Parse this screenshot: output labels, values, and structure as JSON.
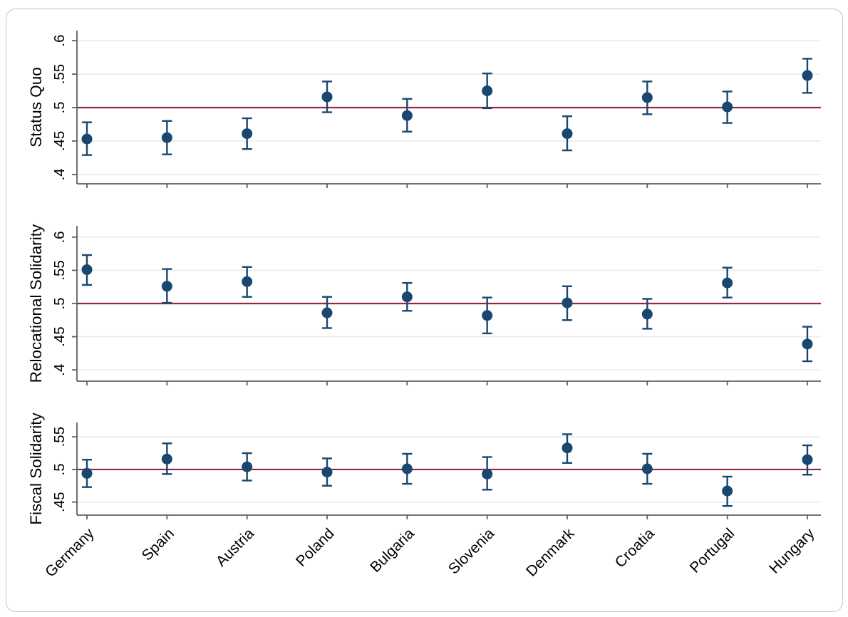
{
  "figure": {
    "colors": {
      "marker": "#1a476f",
      "reference_line": "#942743",
      "gridline": "#e4ecf3",
      "axis": "#5f5f5f",
      "text": "#000000",
      "frame_border": "#c4c4c4",
      "background": "#ffffff"
    }
  },
  "chart_data": {
    "type": "scatter",
    "subtype": "coefficient-plot-with-95ci",
    "grid": true,
    "legend": "none",
    "reference_line_value": 0.5,
    "categories": [
      "Germany",
      "Spain",
      "Austria",
      "Poland",
      "Bulgaria",
      "Slovenia",
      "Denmark",
      "Croatia",
      "Portugal",
      "Hungary"
    ],
    "panels": [
      {
        "ylabel": "Status Quo",
        "ytick_labels": [
          ".4",
          ".45",
          ".5",
          ".55",
          ".6"
        ],
        "ytick_values": [
          0.4,
          0.45,
          0.5,
          0.55,
          0.6
        ],
        "ylim": [
          0.386,
          0.615
        ],
        "points": [
          {
            "country": "Germany",
            "value": 0.453,
            "ci_low": 0.429,
            "ci_high": 0.478
          },
          {
            "country": "Spain",
            "value": 0.455,
            "ci_low": 0.43,
            "ci_high": 0.48
          },
          {
            "country": "Austria",
            "value": 0.461,
            "ci_low": 0.438,
            "ci_high": 0.484
          },
          {
            "country": "Poland",
            "value": 0.516,
            "ci_low": 0.493,
            "ci_high": 0.539
          },
          {
            "country": "Bulgaria",
            "value": 0.488,
            "ci_low": 0.464,
            "ci_high": 0.513
          },
          {
            "country": "Slovenia",
            "value": 0.525,
            "ci_low": 0.499,
            "ci_high": 0.551
          },
          {
            "country": "Denmark",
            "value": 0.461,
            "ci_low": 0.436,
            "ci_high": 0.487
          },
          {
            "country": "Croatia",
            "value": 0.515,
            "ci_low": 0.49,
            "ci_high": 0.539
          },
          {
            "country": "Portugal",
            "value": 0.501,
            "ci_low": 0.477,
            "ci_high": 0.524
          },
          {
            "country": "Hungary",
            "value": 0.548,
            "ci_low": 0.522,
            "ci_high": 0.573
          }
        ]
      },
      {
        "ylabel": "Relocational Solidarity",
        "ytick_labels": [
          ".4",
          ".45",
          ".5",
          ".55",
          ".6"
        ],
        "ytick_values": [
          0.4,
          0.45,
          0.5,
          0.55,
          0.6
        ],
        "ylim": [
          0.383,
          0.617
        ],
        "points": [
          {
            "country": "Germany",
            "value": 0.551,
            "ci_low": 0.528,
            "ci_high": 0.573
          },
          {
            "country": "Spain",
            "value": 0.526,
            "ci_low": 0.501,
            "ci_high": 0.552
          },
          {
            "country": "Austria",
            "value": 0.533,
            "ci_low": 0.51,
            "ci_high": 0.555
          },
          {
            "country": "Poland",
            "value": 0.486,
            "ci_low": 0.463,
            "ci_high": 0.51
          },
          {
            "country": "Bulgaria",
            "value": 0.51,
            "ci_low": 0.489,
            "ci_high": 0.531
          },
          {
            "country": "Slovenia",
            "value": 0.482,
            "ci_low": 0.455,
            "ci_high": 0.509
          },
          {
            "country": "Denmark",
            "value": 0.501,
            "ci_low": 0.475,
            "ci_high": 0.526
          },
          {
            "country": "Croatia",
            "value": 0.484,
            "ci_low": 0.462,
            "ci_high": 0.507
          },
          {
            "country": "Portugal",
            "value": 0.531,
            "ci_low": 0.509,
            "ci_high": 0.554
          },
          {
            "country": "Hungary",
            "value": 0.439,
            "ci_low": 0.413,
            "ci_high": 0.465
          }
        ]
      },
      {
        "ylabel": "Fiscal Solidarity",
        "ytick_labels": [
          ".45",
          ".5",
          ".55"
        ],
        "ytick_values": [
          0.45,
          0.5,
          0.55
        ],
        "ylim": [
          0.43,
          0.572
        ],
        "points": [
          {
            "country": "Germany",
            "value": 0.494,
            "ci_low": 0.473,
            "ci_high": 0.515
          },
          {
            "country": "Spain",
            "value": 0.516,
            "ci_low": 0.493,
            "ci_high": 0.54
          },
          {
            "country": "Austria",
            "value": 0.504,
            "ci_low": 0.483,
            "ci_high": 0.525
          },
          {
            "country": "Poland",
            "value": 0.496,
            "ci_low": 0.475,
            "ci_high": 0.517
          },
          {
            "country": "Bulgaria",
            "value": 0.501,
            "ci_low": 0.478,
            "ci_high": 0.524
          },
          {
            "country": "Slovenia",
            "value": 0.493,
            "ci_low": 0.469,
            "ci_high": 0.519
          },
          {
            "country": "Denmark",
            "value": 0.533,
            "ci_low": 0.51,
            "ci_high": 0.554
          },
          {
            "country": "Croatia",
            "value": 0.501,
            "ci_low": 0.478,
            "ci_high": 0.524
          },
          {
            "country": "Portugal",
            "value": 0.467,
            "ci_low": 0.444,
            "ci_high": 0.489
          },
          {
            "country": "Hungary",
            "value": 0.515,
            "ci_low": 0.492,
            "ci_high": 0.537
          }
        ]
      }
    ]
  }
}
